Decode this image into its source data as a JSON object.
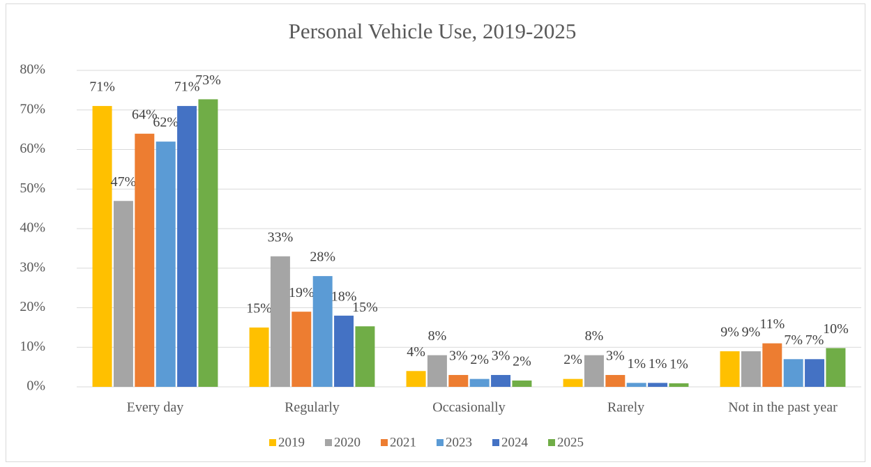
{
  "chart_data": {
    "type": "bar",
    "title": "Personal Vehicle Use, 2019-2025",
    "categories": [
      "Every day",
      "Regularly",
      "Occasionally",
      "Rarely",
      "Not in the past year"
    ],
    "series": [
      {
        "name": "2019",
        "color": "#ffc000",
        "values": [
          71,
          15,
          4,
          2,
          9
        ],
        "value_labels": [
          "71%",
          "15%",
          "4%",
          "2%",
          "9%"
        ]
      },
      {
        "name": "2020",
        "color": "#a5a5a5",
        "values": [
          47,
          33,
          8,
          8,
          9
        ],
        "value_labels": [
          "47%",
          "33%",
          "8%",
          "8%",
          "9%"
        ]
      },
      {
        "name": "2021",
        "color": "#ed7d31",
        "values": [
          64,
          19,
          3,
          3,
          11
        ],
        "value_labels": [
          "64%",
          "19%",
          "3%",
          "3%",
          "11%"
        ]
      },
      {
        "name": "2023",
        "color": "#5b9bd5",
        "values": [
          62,
          28,
          2,
          1,
          7
        ],
        "value_labels": [
          "62%",
          "28%",
          "2%",
          "1%",
          "7%"
        ]
      },
      {
        "name": "2024",
        "color": "#4472c4",
        "values": [
          71,
          18,
          3,
          1,
          7
        ],
        "value_labels": [
          "71%",
          "18%",
          "3%",
          "1%",
          "7%"
        ]
      },
      {
        "name": "2025",
        "color": "#70ad47",
        "values": [
          72.7,
          15.3,
          1.6,
          0.9,
          9.8
        ],
        "value_labels": [
          "73%",
          "15%",
          "2%",
          "1%",
          "10%"
        ]
      }
    ],
    "ylim": [
      0,
      80
    ],
    "yticks": [
      {
        "value": 0,
        "label": "0%"
      },
      {
        "value": 10,
        "label": "10%"
      },
      {
        "value": 20,
        "label": "20%"
      },
      {
        "value": 30,
        "label": "30%"
      },
      {
        "value": 40,
        "label": "40%"
      },
      {
        "value": 50,
        "label": "50%"
      },
      {
        "value": 60,
        "label": "60%"
      },
      {
        "value": 70,
        "label": "70%"
      },
      {
        "value": 80,
        "label": "80%"
      }
    ],
    "grid": true,
    "legend": "bottom"
  }
}
